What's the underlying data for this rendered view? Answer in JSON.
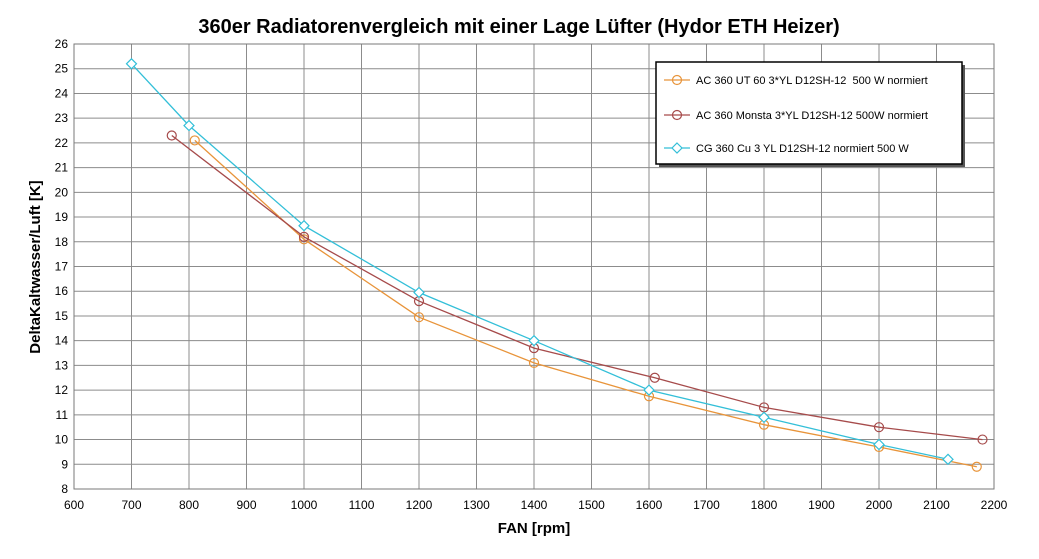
{
  "chart_data": {
    "type": "line",
    "title": "360er Radiatorenvergleich mit einer Lage Lüfter (Hydor ETH Heizer)",
    "xlabel": "FAN [rpm]",
    "ylabel": "DeltaKaltwasser/Luft [K]",
    "xlim": [
      600,
      2200
    ],
    "ylim": [
      8,
      26
    ],
    "xticks": [
      600,
      700,
      800,
      900,
      1000,
      1100,
      1200,
      1300,
      1400,
      1500,
      1600,
      1700,
      1800,
      1900,
      2000,
      2100,
      2200
    ],
    "yticks": [
      8,
      9,
      10,
      11,
      12,
      13,
      14,
      15,
      16,
      17,
      18,
      19,
      20,
      21,
      22,
      23,
      24,
      25,
      26
    ],
    "grid": true,
    "legend_position": "top-right",
    "series": [
      {
        "name": "AC 360 UT 60 3*YL D12SH-12  500 W normiert",
        "color": "#e8943a",
        "marker": "circle",
        "x": [
          810,
          1000,
          1200,
          1400,
          1600,
          1800,
          2000,
          2170
        ],
        "y": [
          22.1,
          18.1,
          14.95,
          13.1,
          11.75,
          10.6,
          9.7,
          8.9
        ]
      },
      {
        "name": "AC 360 Monsta 3*YL D12SH-12 500W normiert",
        "color": "#a64b4b",
        "marker": "circle",
        "x": [
          770,
          1000,
          1200,
          1400,
          1610,
          1800,
          2000,
          2180
        ],
        "y": [
          22.3,
          18.2,
          15.6,
          13.7,
          12.5,
          11.3,
          10.5,
          10.0
        ]
      },
      {
        "name": "CG 360 Cu 3 YL D12SH-12 normiert 500 W",
        "color": "#33bfd8",
        "marker": "diamond",
        "x": [
          700,
          800,
          1000,
          1200,
          1400,
          1600,
          1800,
          2000,
          2120
        ],
        "y": [
          25.2,
          22.7,
          18.65,
          15.95,
          14.0,
          12.0,
          10.9,
          9.8,
          9.2
        ]
      }
    ]
  }
}
